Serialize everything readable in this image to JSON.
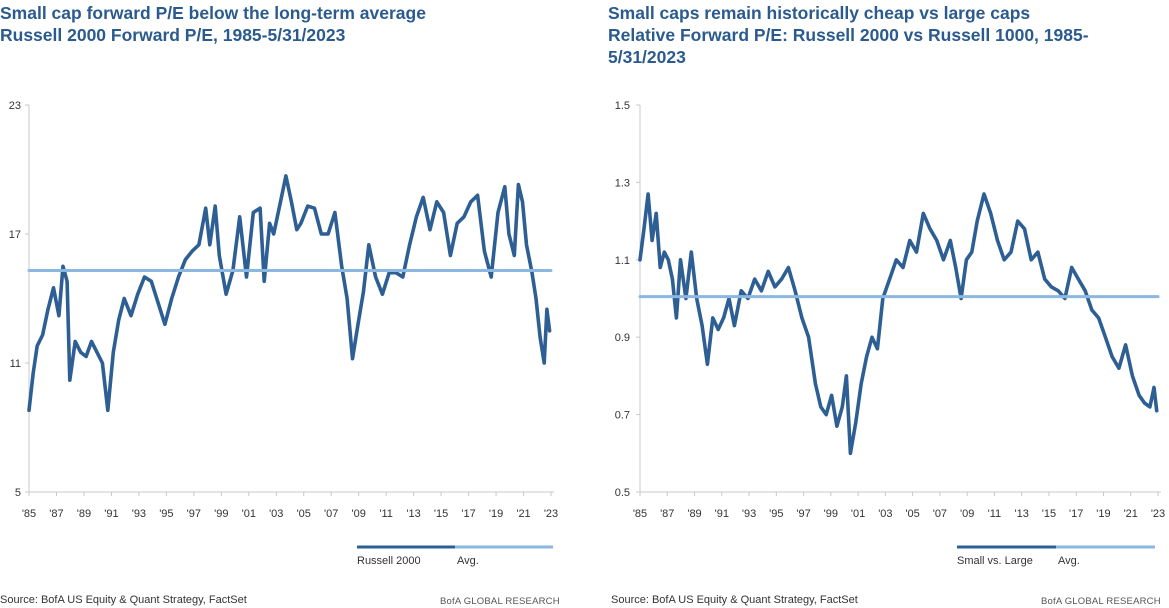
{
  "chart_data": [
    {
      "type": "line",
      "title": "Small cap forward P/E below the long-term average",
      "subtitle": "Russell 2000 Forward P/E, 1985-5/31/2023",
      "x_tick_labels": [
        "'85",
        "'87",
        "'89",
        "'91",
        "'93",
        "'95",
        "'97",
        "'99",
        "'01",
        "'03",
        "'05",
        "'07",
        "'09",
        "'11",
        "'13",
        "'15",
        "'17",
        "'19",
        "'21",
        "'23"
      ],
      "y_ticks": [
        5,
        11,
        17,
        23
      ],
      "ylim": [
        5,
        23
      ],
      "xlim": [
        1985,
        2023.4
      ],
      "grid": false,
      "legend_position": "bottom-right",
      "series": [
        {
          "name": "Russell 2000",
          "color": "#2e5f94",
          "x": [
            1985.0,
            1985.3,
            1985.6,
            1986.0,
            1986.4,
            1986.8,
            1987.2,
            1987.5,
            1987.8,
            1988.0,
            1988.4,
            1988.8,
            1989.2,
            1989.6,
            1990.0,
            1990.4,
            1990.8,
            1991.2,
            1991.6,
            1992.0,
            1992.5,
            1993.0,
            1993.5,
            1994.0,
            1994.5,
            1995.0,
            1995.5,
            1996.0,
            1996.5,
            1997.0,
            1997.5,
            1998.0,
            1998.3,
            1998.7,
            1999.0,
            1999.5,
            2000.0,
            2000.5,
            2001.0,
            2001.5,
            2002.0,
            2002.3,
            2002.7,
            2003.0,
            2003.5,
            2003.9,
            2004.3,
            2004.7,
            2005.0,
            2005.5,
            2006.0,
            2006.5,
            2007.0,
            2007.5,
            2008.0,
            2008.4,
            2008.8,
            2009.2,
            2009.6,
            2010.0,
            2010.5,
            2011.0,
            2011.5,
            2012.0,
            2012.5,
            2013.0,
            2013.5,
            2014.0,
            2014.5,
            2015.0,
            2015.5,
            2016.0,
            2016.5,
            2017.0,
            2017.5,
            2018.0,
            2018.5,
            2019.0,
            2019.5,
            2020.0,
            2020.3,
            2020.7,
            2021.0,
            2021.3,
            2021.6,
            2022.0,
            2022.3,
            2022.6,
            2022.9,
            2023.1,
            2023.3
          ],
          "values": [
            8.8,
            10.5,
            11.8,
            12.3,
            13.5,
            14.5,
            13.2,
            15.5,
            14.8,
            10.2,
            12.0,
            11.5,
            11.3,
            12.0,
            11.5,
            11.0,
            8.8,
            11.5,
            13.0,
            14.0,
            13.2,
            14.2,
            15.0,
            14.8,
            13.8,
            12.8,
            14.0,
            15.0,
            15.8,
            16.2,
            16.5,
            18.2,
            16.5,
            18.3,
            16.0,
            14.2,
            15.3,
            17.8,
            15.0,
            18.0,
            18.2,
            14.8,
            17.5,
            17.0,
            18.5,
            19.7,
            18.5,
            17.2,
            17.5,
            18.3,
            18.2,
            17.0,
            17.0,
            18.0,
            15.5,
            14.0,
            11.2,
            12.8,
            14.3,
            16.5,
            15.0,
            14.2,
            15.2,
            15.2,
            15.0,
            16.5,
            17.8,
            18.7,
            17.2,
            18.5,
            18.0,
            16.0,
            17.5,
            17.8,
            18.5,
            18.8,
            16.2,
            15.0,
            18.0,
            19.2,
            17.0,
            16.0,
            19.3,
            18.5,
            16.5,
            15.2,
            14.0,
            12.2,
            11.0,
            13.5,
            12.5
          ]
        },
        {
          "name": "Avg.",
          "color": "#8ab8e0",
          "x": [
            1985,
            2023.4
          ],
          "values": [
            15.3,
            15.3
          ]
        }
      ],
      "source": "Source: BofA US Equity & Quant Strategy, FactSet",
      "brand": "BofA GLOBAL RESEARCH"
    },
    {
      "type": "line",
      "title": "Small caps remain historically cheap vs large caps",
      "subtitle": "Relative Forward P/E: Russell 2000 vs Russell 1000, 1985-5/31/2023",
      "x_tick_labels": [
        "'85",
        "'87",
        "'89",
        "'91",
        "'93",
        "'95",
        "'97",
        "'99",
        "'01",
        "'03",
        "'05",
        "'07",
        "'09",
        "'11",
        "'13",
        "'15",
        "'17",
        "'19",
        "'21",
        "'23"
      ],
      "y_ticks": [
        0.5,
        0.7,
        0.9,
        1.1,
        1.3,
        1.5
      ],
      "ylim": [
        0.5,
        1.5
      ],
      "xlim": [
        1985,
        2023.4
      ],
      "grid": false,
      "legend_position": "bottom-right",
      "series": [
        {
          "name": "Small vs. Large",
          "color": "#2e5f94",
          "x": [
            1985.0,
            1985.3,
            1985.6,
            1985.9,
            1986.2,
            1986.5,
            1986.8,
            1987.1,
            1987.4,
            1987.7,
            1988.0,
            1988.4,
            1988.8,
            1989.2,
            1989.6,
            1990.0,
            1990.4,
            1990.8,
            1991.2,
            1991.6,
            1992.0,
            1992.5,
            1993.0,
            1993.5,
            1994.0,
            1994.5,
            1995.0,
            1995.5,
            1996.0,
            1996.5,
            1997.0,
            1997.5,
            1998.0,
            1998.4,
            1998.8,
            1999.2,
            1999.6,
            2000.0,
            2000.3,
            2000.6,
            2001.0,
            2001.4,
            2001.8,
            2002.2,
            2002.6,
            2003.0,
            2003.5,
            2004.0,
            2004.5,
            2005.0,
            2005.5,
            2006.0,
            2006.5,
            2007.0,
            2007.5,
            2008.0,
            2008.4,
            2008.8,
            2009.2,
            2009.6,
            2010.0,
            2010.5,
            2011.0,
            2011.5,
            2012.0,
            2012.5,
            2013.0,
            2013.5,
            2014.0,
            2014.5,
            2015.0,
            2015.5,
            2016.0,
            2016.5,
            2017.0,
            2017.5,
            2018.0,
            2018.5,
            2019.0,
            2019.5,
            2020.0,
            2020.5,
            2021.0,
            2021.5,
            2022.0,
            2022.4,
            2022.8,
            2023.1,
            2023.3
          ],
          "values": [
            1.1,
            1.18,
            1.27,
            1.15,
            1.22,
            1.08,
            1.12,
            1.1,
            1.05,
            0.95,
            1.1,
            1.0,
            1.12,
            1.0,
            0.93,
            0.83,
            0.95,
            0.92,
            0.95,
            1.0,
            0.93,
            1.02,
            1.0,
            1.05,
            1.02,
            1.07,
            1.03,
            1.05,
            1.08,
            1.02,
            0.95,
            0.9,
            0.78,
            0.72,
            0.7,
            0.75,
            0.67,
            0.72,
            0.8,
            0.6,
            0.68,
            0.78,
            0.85,
            0.9,
            0.87,
            1.0,
            1.05,
            1.1,
            1.08,
            1.15,
            1.12,
            1.22,
            1.18,
            1.15,
            1.1,
            1.15,
            1.08,
            1.0,
            1.1,
            1.12,
            1.2,
            1.27,
            1.22,
            1.15,
            1.1,
            1.12,
            1.2,
            1.18,
            1.1,
            1.12,
            1.05,
            1.03,
            1.02,
            1.0,
            1.08,
            1.05,
            1.02,
            0.97,
            0.95,
            0.9,
            0.85,
            0.82,
            0.88,
            0.8,
            0.75,
            0.73,
            0.72,
            0.77,
            0.71
          ]
        },
        {
          "name": "Avg.",
          "color": "#8ab8e0",
          "x": [
            1985,
            2023.4
          ],
          "values": [
            1.005,
            1.005
          ]
        }
      ],
      "source": "Source: BofA US Equity & Quant Strategy, FactSet",
      "brand": "BofA GLOBAL RESEARCH"
    }
  ]
}
